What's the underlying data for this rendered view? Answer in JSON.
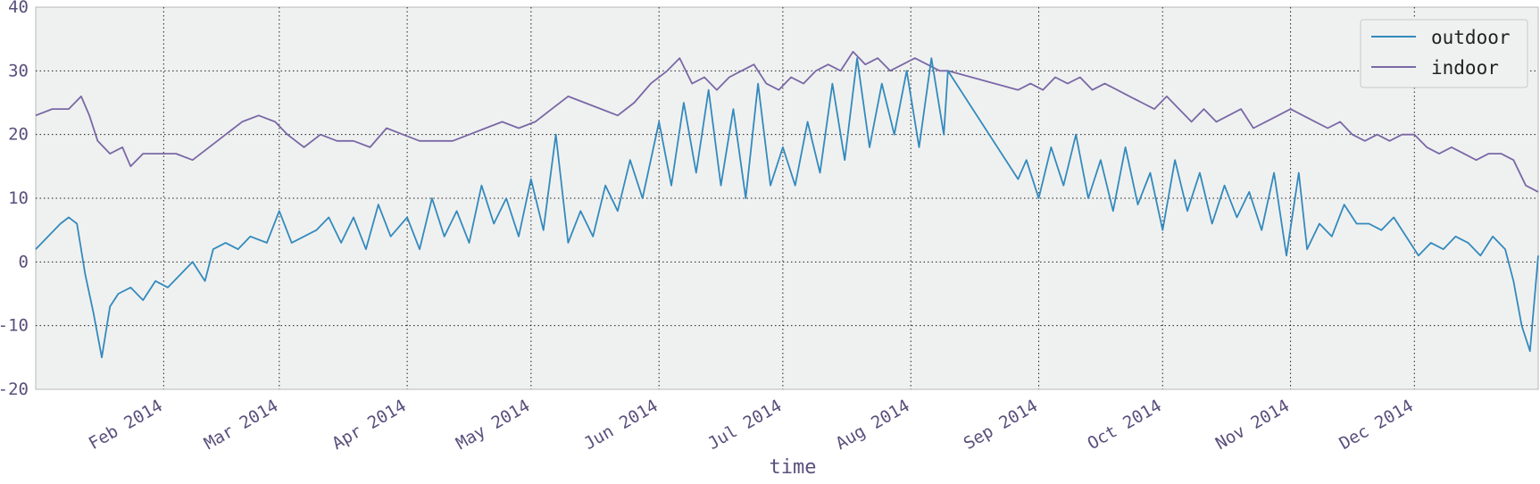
{
  "chart_data": {
    "type": "line",
    "xlabel": "time",
    "ylabel": "",
    "title": "",
    "ylim": [
      -20,
      40
    ],
    "yticks": [
      -20,
      -10,
      0,
      10,
      20,
      30,
      40
    ],
    "xlim": [
      "2014-01-01",
      "2014-12-31"
    ],
    "xticks": [
      {
        "date": "2014-02-01",
        "label": "Feb 2014"
      },
      {
        "date": "2014-03-01",
        "label": "Mar 2014"
      },
      {
        "date": "2014-04-01",
        "label": "Apr 2014"
      },
      {
        "date": "2014-05-01",
        "label": "May 2014"
      },
      {
        "date": "2014-06-01",
        "label": "Jun 2014"
      },
      {
        "date": "2014-07-01",
        "label": "Jul 2014"
      },
      {
        "date": "2014-08-01",
        "label": "Aug 2014"
      },
      {
        "date": "2014-09-01",
        "label": "Sep 2014"
      },
      {
        "date": "2014-10-01",
        "label": "Oct 2014"
      },
      {
        "date": "2014-11-01",
        "label": "Nov 2014"
      },
      {
        "date": "2014-12-01",
        "label": "Dec 2014"
      }
    ],
    "grid": true,
    "legend_position": "top-right",
    "series": [
      {
        "name": "outdoor",
        "color": "#348ABD",
        "points": [
          {
            "x": "2014-01-01",
            "y": 2
          },
          {
            "x": "2014-01-04",
            "y": 4
          },
          {
            "x": "2014-01-07",
            "y": 6
          },
          {
            "x": "2014-01-09",
            "y": 7
          },
          {
            "x": "2014-01-11",
            "y": 6
          },
          {
            "x": "2014-01-13",
            "y": -2
          },
          {
            "x": "2014-01-15",
            "y": -8
          },
          {
            "x": "2014-01-17",
            "y": -15
          },
          {
            "x": "2014-01-19",
            "y": -7
          },
          {
            "x": "2014-01-21",
            "y": -5
          },
          {
            "x": "2014-01-24",
            "y": -4
          },
          {
            "x": "2014-01-27",
            "y": -6
          },
          {
            "x": "2014-01-30",
            "y": -3
          },
          {
            "x": "2014-02-02",
            "y": -4
          },
          {
            "x": "2014-02-05",
            "y": -2
          },
          {
            "x": "2014-02-08",
            "y": 0
          },
          {
            "x": "2014-02-11",
            "y": -3
          },
          {
            "x": "2014-02-13",
            "y": 2
          },
          {
            "x": "2014-02-16",
            "y": 3
          },
          {
            "x": "2014-02-19",
            "y": 2
          },
          {
            "x": "2014-02-22",
            "y": 4
          },
          {
            "x": "2014-02-26",
            "y": 3
          },
          {
            "x": "2014-03-01",
            "y": 8
          },
          {
            "x": "2014-03-04",
            "y": 3
          },
          {
            "x": "2014-03-07",
            "y": 4
          },
          {
            "x": "2014-03-10",
            "y": 5
          },
          {
            "x": "2014-03-13",
            "y": 7
          },
          {
            "x": "2014-03-16",
            "y": 3
          },
          {
            "x": "2014-03-19",
            "y": 7
          },
          {
            "x": "2014-03-22",
            "y": 2
          },
          {
            "x": "2014-03-25",
            "y": 9
          },
          {
            "x": "2014-03-28",
            "y": 4
          },
          {
            "x": "2014-04-01",
            "y": 7
          },
          {
            "x": "2014-04-04",
            "y": 2
          },
          {
            "x": "2014-04-07",
            "y": 10
          },
          {
            "x": "2014-04-10",
            "y": 4
          },
          {
            "x": "2014-04-13",
            "y": 8
          },
          {
            "x": "2014-04-16",
            "y": 3
          },
          {
            "x": "2014-04-19",
            "y": 12
          },
          {
            "x": "2014-04-22",
            "y": 6
          },
          {
            "x": "2014-04-25",
            "y": 10
          },
          {
            "x": "2014-04-28",
            "y": 4
          },
          {
            "x": "2014-05-01",
            "y": 13
          },
          {
            "x": "2014-05-04",
            "y": 5
          },
          {
            "x": "2014-05-07",
            "y": 20
          },
          {
            "x": "2014-05-10",
            "y": 3
          },
          {
            "x": "2014-05-13",
            "y": 8
          },
          {
            "x": "2014-05-16",
            "y": 4
          },
          {
            "x": "2014-05-19",
            "y": 12
          },
          {
            "x": "2014-05-22",
            "y": 8
          },
          {
            "x": "2014-05-25",
            "y": 16
          },
          {
            "x": "2014-05-28",
            "y": 10
          },
          {
            "x": "2014-06-01",
            "y": 22
          },
          {
            "x": "2014-06-04",
            "y": 12
          },
          {
            "x": "2014-06-07",
            "y": 25
          },
          {
            "x": "2014-06-10",
            "y": 14
          },
          {
            "x": "2014-06-13",
            "y": 27
          },
          {
            "x": "2014-06-16",
            "y": 12
          },
          {
            "x": "2014-06-19",
            "y": 24
          },
          {
            "x": "2014-06-22",
            "y": 10
          },
          {
            "x": "2014-06-25",
            "y": 28
          },
          {
            "x": "2014-06-28",
            "y": 12
          },
          {
            "x": "2014-07-01",
            "y": 18
          },
          {
            "x": "2014-07-04",
            "y": 12
          },
          {
            "x": "2014-07-07",
            "y": 22
          },
          {
            "x": "2014-07-10",
            "y": 14
          },
          {
            "x": "2014-07-13",
            "y": 28
          },
          {
            "x": "2014-07-16",
            "y": 16
          },
          {
            "x": "2014-07-19",
            "y": 32
          },
          {
            "x": "2014-07-22",
            "y": 18
          },
          {
            "x": "2014-07-25",
            "y": 28
          },
          {
            "x": "2014-07-28",
            "y": 20
          },
          {
            "x": "2014-07-31",
            "y": 30
          },
          {
            "x": "2014-08-03",
            "y": 18
          },
          {
            "x": "2014-08-06",
            "y": 32
          },
          {
            "x": "2014-08-09",
            "y": 20
          },
          {
            "x": "2014-08-10",
            "y": 30
          },
          {
            "x": "2014-08-27",
            "y": 13
          },
          {
            "x": "2014-08-29",
            "y": 16
          },
          {
            "x": "2014-09-01",
            "y": 10
          },
          {
            "x": "2014-09-04",
            "y": 18
          },
          {
            "x": "2014-09-07",
            "y": 12
          },
          {
            "x": "2014-09-10",
            "y": 20
          },
          {
            "x": "2014-09-13",
            "y": 10
          },
          {
            "x": "2014-09-16",
            "y": 16
          },
          {
            "x": "2014-09-19",
            "y": 8
          },
          {
            "x": "2014-09-22",
            "y": 18
          },
          {
            "x": "2014-09-25",
            "y": 9
          },
          {
            "x": "2014-09-28",
            "y": 14
          },
          {
            "x": "2014-10-01",
            "y": 5
          },
          {
            "x": "2014-10-04",
            "y": 16
          },
          {
            "x": "2014-10-07",
            "y": 8
          },
          {
            "x": "2014-10-10",
            "y": 14
          },
          {
            "x": "2014-10-13",
            "y": 6
          },
          {
            "x": "2014-10-16",
            "y": 12
          },
          {
            "x": "2014-10-19",
            "y": 7
          },
          {
            "x": "2014-10-22",
            "y": 11
          },
          {
            "x": "2014-10-25",
            "y": 5
          },
          {
            "x": "2014-10-28",
            "y": 14
          },
          {
            "x": "2014-10-31",
            "y": 1
          },
          {
            "x": "2014-11-03",
            "y": 14
          },
          {
            "x": "2014-11-05",
            "y": 2
          },
          {
            "x": "2014-11-08",
            "y": 6
          },
          {
            "x": "2014-11-11",
            "y": 4
          },
          {
            "x": "2014-11-14",
            "y": 9
          },
          {
            "x": "2014-11-17",
            "y": 6
          },
          {
            "x": "2014-11-20",
            "y": 6
          },
          {
            "x": "2014-11-23",
            "y": 5
          },
          {
            "x": "2014-11-26",
            "y": 7
          },
          {
            "x": "2014-11-29",
            "y": 4
          },
          {
            "x": "2014-12-02",
            "y": 1
          },
          {
            "x": "2014-12-05",
            "y": 3
          },
          {
            "x": "2014-12-08",
            "y": 2
          },
          {
            "x": "2014-12-11",
            "y": 4
          },
          {
            "x": "2014-12-14",
            "y": 3
          },
          {
            "x": "2014-12-17",
            "y": 1
          },
          {
            "x": "2014-12-20",
            "y": 4
          },
          {
            "x": "2014-12-23",
            "y": 2
          },
          {
            "x": "2014-12-25",
            "y": -3
          },
          {
            "x": "2014-12-27",
            "y": -10
          },
          {
            "x": "2014-12-29",
            "y": -14
          },
          {
            "x": "2014-12-31",
            "y": 1
          }
        ]
      },
      {
        "name": "indoor",
        "color": "#7A68A6",
        "points": [
          {
            "x": "2014-01-01",
            "y": 23
          },
          {
            "x": "2014-01-05",
            "y": 24
          },
          {
            "x": "2014-01-09",
            "y": 24
          },
          {
            "x": "2014-01-12",
            "y": 26
          },
          {
            "x": "2014-01-14",
            "y": 23
          },
          {
            "x": "2014-01-16",
            "y": 19
          },
          {
            "x": "2014-01-19",
            "y": 17
          },
          {
            "x": "2014-01-22",
            "y": 18
          },
          {
            "x": "2014-01-24",
            "y": 15
          },
          {
            "x": "2014-01-27",
            "y": 17
          },
          {
            "x": "2014-01-31",
            "y": 17
          },
          {
            "x": "2014-02-04",
            "y": 17
          },
          {
            "x": "2014-02-08",
            "y": 16
          },
          {
            "x": "2014-02-12",
            "y": 18
          },
          {
            "x": "2014-02-16",
            "y": 20
          },
          {
            "x": "2014-02-20",
            "y": 22
          },
          {
            "x": "2014-02-24",
            "y": 23
          },
          {
            "x": "2014-02-28",
            "y": 22
          },
          {
            "x": "2014-03-03",
            "y": 20
          },
          {
            "x": "2014-03-07",
            "y": 18
          },
          {
            "x": "2014-03-11",
            "y": 20
          },
          {
            "x": "2014-03-15",
            "y": 19
          },
          {
            "x": "2014-03-19",
            "y": 19
          },
          {
            "x": "2014-03-23",
            "y": 18
          },
          {
            "x": "2014-03-27",
            "y": 21
          },
          {
            "x": "2014-03-31",
            "y": 20
          },
          {
            "x": "2014-04-04",
            "y": 19
          },
          {
            "x": "2014-04-08",
            "y": 19
          },
          {
            "x": "2014-04-12",
            "y": 19
          },
          {
            "x": "2014-04-16",
            "y": 20
          },
          {
            "x": "2014-04-20",
            "y": 21
          },
          {
            "x": "2014-04-24",
            "y": 22
          },
          {
            "x": "2014-04-28",
            "y": 21
          },
          {
            "x": "2014-05-02",
            "y": 22
          },
          {
            "x": "2014-05-06",
            "y": 24
          },
          {
            "x": "2014-05-10",
            "y": 26
          },
          {
            "x": "2014-05-14",
            "y": 25
          },
          {
            "x": "2014-05-18",
            "y": 24
          },
          {
            "x": "2014-05-22",
            "y": 23
          },
          {
            "x": "2014-05-26",
            "y": 25
          },
          {
            "x": "2014-05-30",
            "y": 28
          },
          {
            "x": "2014-06-03",
            "y": 30
          },
          {
            "x": "2014-06-06",
            "y": 32
          },
          {
            "x": "2014-06-09",
            "y": 28
          },
          {
            "x": "2014-06-12",
            "y": 29
          },
          {
            "x": "2014-06-15",
            "y": 27
          },
          {
            "x": "2014-06-18",
            "y": 29
          },
          {
            "x": "2014-06-21",
            "y": 30
          },
          {
            "x": "2014-06-24",
            "y": 31
          },
          {
            "x": "2014-06-27",
            "y": 28
          },
          {
            "x": "2014-06-30",
            "y": 27
          },
          {
            "x": "2014-07-03",
            "y": 29
          },
          {
            "x": "2014-07-06",
            "y": 28
          },
          {
            "x": "2014-07-09",
            "y": 30
          },
          {
            "x": "2014-07-12",
            "y": 31
          },
          {
            "x": "2014-07-15",
            "y": 30
          },
          {
            "x": "2014-07-18",
            "y": 33
          },
          {
            "x": "2014-07-21",
            "y": 31
          },
          {
            "x": "2014-07-24",
            "y": 32
          },
          {
            "x": "2014-07-27",
            "y": 30
          },
          {
            "x": "2014-07-30",
            "y": 31
          },
          {
            "x": "2014-08-02",
            "y": 32
          },
          {
            "x": "2014-08-05",
            "y": 31
          },
          {
            "x": "2014-08-08",
            "y": 30
          },
          {
            "x": "2014-08-10",
            "y": 30
          },
          {
            "x": "2014-08-27",
            "y": 27
          },
          {
            "x": "2014-08-30",
            "y": 28
          },
          {
            "x": "2014-09-02",
            "y": 27
          },
          {
            "x": "2014-09-05",
            "y": 29
          },
          {
            "x": "2014-09-08",
            "y": 28
          },
          {
            "x": "2014-09-11",
            "y": 29
          },
          {
            "x": "2014-09-14",
            "y": 27
          },
          {
            "x": "2014-09-17",
            "y": 28
          },
          {
            "x": "2014-09-20",
            "y": 27
          },
          {
            "x": "2014-09-23",
            "y": 26
          },
          {
            "x": "2014-09-26",
            "y": 25
          },
          {
            "x": "2014-09-29",
            "y": 24
          },
          {
            "x": "2014-10-02",
            "y": 26
          },
          {
            "x": "2014-10-05",
            "y": 24
          },
          {
            "x": "2014-10-08",
            "y": 22
          },
          {
            "x": "2014-10-11",
            "y": 24
          },
          {
            "x": "2014-10-14",
            "y": 22
          },
          {
            "x": "2014-10-17",
            "y": 23
          },
          {
            "x": "2014-10-20",
            "y": 24
          },
          {
            "x": "2014-10-23",
            "y": 21
          },
          {
            "x": "2014-10-26",
            "y": 22
          },
          {
            "x": "2014-10-29",
            "y": 23
          },
          {
            "x": "2014-11-01",
            "y": 24
          },
          {
            "x": "2014-11-04",
            "y": 23
          },
          {
            "x": "2014-11-07",
            "y": 22
          },
          {
            "x": "2014-11-10",
            "y": 21
          },
          {
            "x": "2014-11-13",
            "y": 22
          },
          {
            "x": "2014-11-16",
            "y": 20
          },
          {
            "x": "2014-11-19",
            "y": 19
          },
          {
            "x": "2014-11-22",
            "y": 20
          },
          {
            "x": "2014-11-25",
            "y": 19
          },
          {
            "x": "2014-11-28",
            "y": 20
          },
          {
            "x": "2014-12-01",
            "y": 20
          },
          {
            "x": "2014-12-04",
            "y": 18
          },
          {
            "x": "2014-12-07",
            "y": 17
          },
          {
            "x": "2014-12-10",
            "y": 18
          },
          {
            "x": "2014-12-13",
            "y": 17
          },
          {
            "x": "2014-12-16",
            "y": 16
          },
          {
            "x": "2014-12-19",
            "y": 17
          },
          {
            "x": "2014-12-22",
            "y": 17
          },
          {
            "x": "2014-12-25",
            "y": 16
          },
          {
            "x": "2014-12-28",
            "y": 12
          },
          {
            "x": "2014-12-31",
            "y": 11
          }
        ]
      }
    ]
  },
  "colors": {
    "plot_background": "#EFF1F0",
    "grid": "#222222",
    "tick_text": "#5a4f7c"
  }
}
